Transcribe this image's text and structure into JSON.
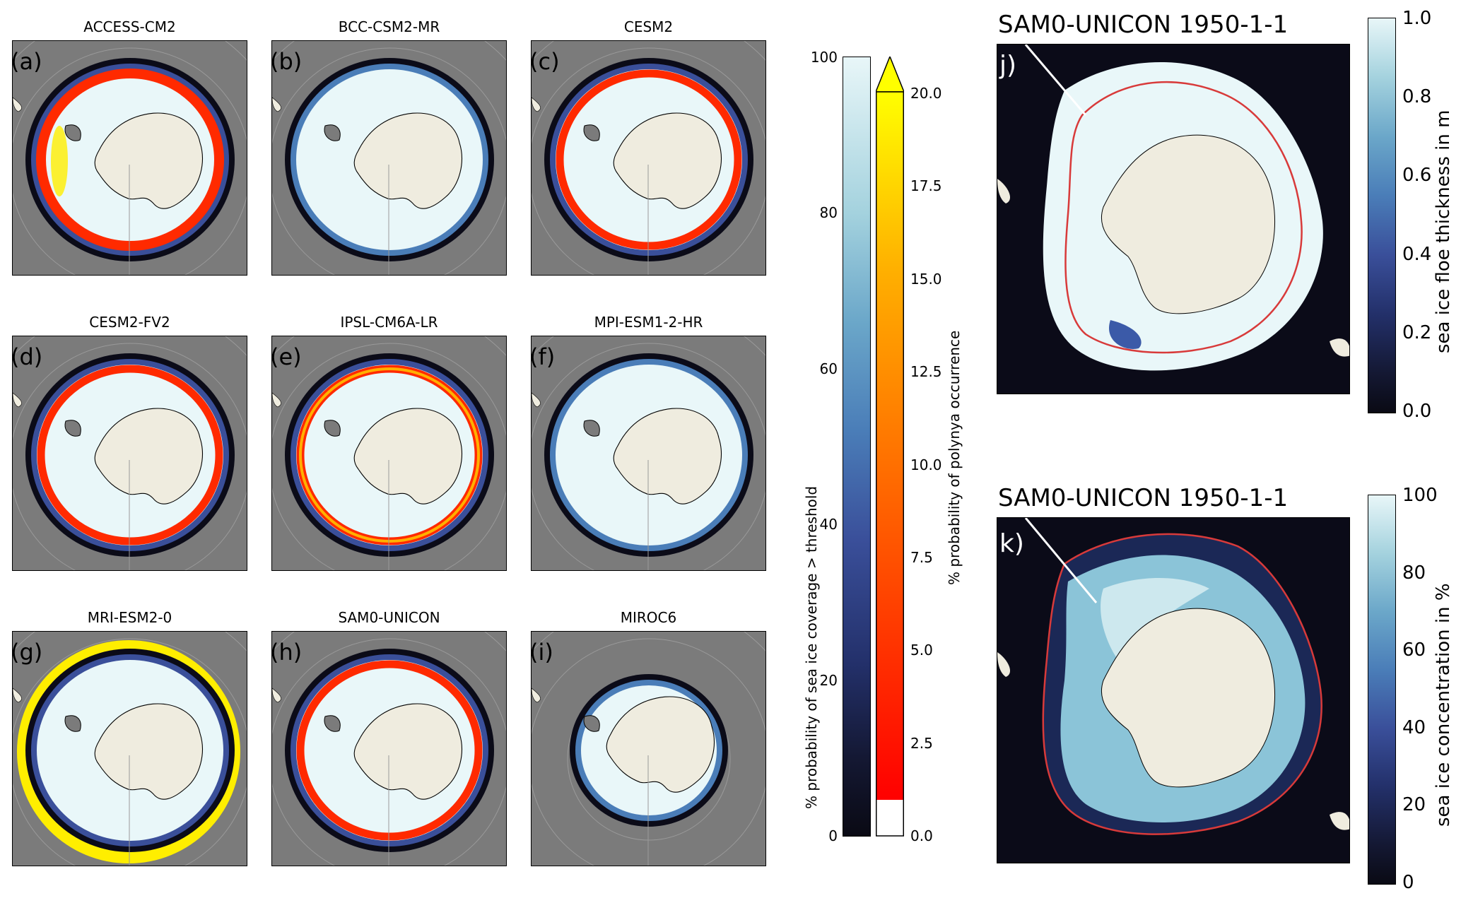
{
  "panels": [
    {
      "letter": "(a)",
      "title": "ACCESS-CM2",
      "style": "dense"
    },
    {
      "letter": "(b)",
      "title": "BCC-CSM2-MR",
      "style": "blue"
    },
    {
      "letter": "(c)",
      "title": "CESM2",
      "style": "ring"
    },
    {
      "letter": "(d)",
      "title": "CESM2-FV2",
      "style": "ring"
    },
    {
      "letter": "(e)",
      "title": "IPSL-CM6A-LR",
      "style": "ringyellow"
    },
    {
      "letter": "(f)",
      "title": "MPI-ESM1-2-HR",
      "style": "plain"
    },
    {
      "letter": "(g)",
      "title": "MRI-ESM2-0",
      "style": "yellow"
    },
    {
      "letter": "(h)",
      "title": "SAM0-UNICON",
      "style": "ring"
    },
    {
      "letter": "(i)",
      "title": "MIROC6",
      "style": "small"
    }
  ],
  "colorbar_ice": {
    "label": "% probability of sea ice coverage > threshold",
    "ticks": [
      "0",
      "20",
      "40",
      "60",
      "80",
      "100"
    ],
    "range": [
      0,
      100
    ]
  },
  "colorbar_polynya": {
    "label": "% probability of polynya occurrence",
    "ticks": [
      "0.0",
      "2.5",
      "5.0",
      "7.5",
      "10.0",
      "12.5",
      "15.0",
      "17.5",
      "20.0"
    ],
    "range": [
      0,
      20
    ]
  },
  "panel_j": {
    "letter": "j)",
    "title": "SAM0-UNICON 1950-1-1",
    "cbar_label": "sea ice floe thickness in m",
    "ticks": [
      "0.0",
      "0.2",
      "0.4",
      "0.6",
      "0.8",
      "1.0"
    ]
  },
  "panel_k": {
    "letter": "k)",
    "title": "SAM0-UNICON 1950-1-1",
    "cbar_label": "sea ice concentration in %",
    "ticks": [
      "0",
      "20",
      "40",
      "60",
      "80",
      "100"
    ]
  },
  "colors": {
    "ocean_gray": "#7b7b7b",
    "land": "#efecdf",
    "ice_light": "#e9f7f9",
    "ocean_dark": "#0b0b18",
    "polynya_red": "#ff2a00",
    "polynya_yellow": "#ffee00",
    "contour_red": "#d83a3a"
  }
}
